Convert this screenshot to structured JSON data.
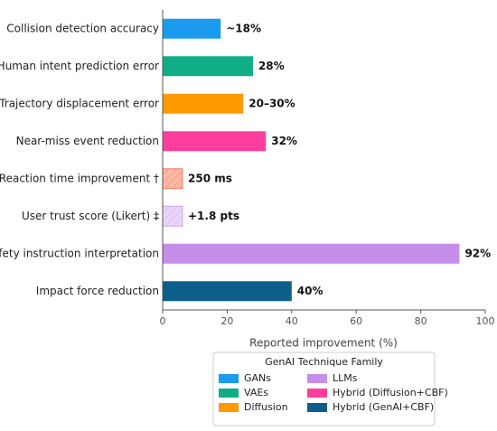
{
  "chart_data": {
    "type": "barh",
    "categories": [
      "Collision detection accuracy",
      "Human intent prediction error",
      "Trajectory displacement error",
      "Near-miss event reduction",
      "Reaction time improvement †",
      "User trust score (Likert) ‡",
      "Safety instruction interpretation",
      "Impact force reduction"
    ],
    "values": [
      18,
      28,
      25,
      32,
      null,
      null,
      92,
      40
    ],
    "value_labels": [
      "~18%",
      "28%",
      "20–30%",
      "32%",
      "250 ms",
      "+1.8 pts",
      "92%",
      "40%"
    ],
    "colors": [
      "#1a9bf0",
      "#0fae86",
      "#ff9a00",
      "#ff3d9d",
      "#f9b9a6",
      "#e9d6f7",
      "#c58ee8",
      "#0b5f8a"
    ],
    "hatch_colors": [
      null,
      null,
      null,
      null,
      "#f08060",
      "#c9a6ee",
      null,
      null
    ],
    "xlabel": "Reported improvement (%)",
    "xlim": [
      0,
      100
    ],
    "xticks": [
      0,
      20,
      40,
      60,
      80,
      100
    ],
    "legend": {
      "title": "GenAI Technique Family",
      "position": "lower center",
      "entries": [
        {
          "name": "GANs",
          "color": "#1a9bf0"
        },
        {
          "name": "VAEs",
          "color": "#0fae86"
        },
        {
          "name": "Diffusion",
          "color": "#ff9a00"
        },
        {
          "name": "LLMs",
          "color": "#c58ee8"
        },
        {
          "name": "Hybrid (Diffusion+CBF)",
          "color": "#ff3d9d"
        },
        {
          "name": "Hybrid (GenAI+CBF)",
          "color": "#0b5f8a"
        }
      ]
    }
  }
}
